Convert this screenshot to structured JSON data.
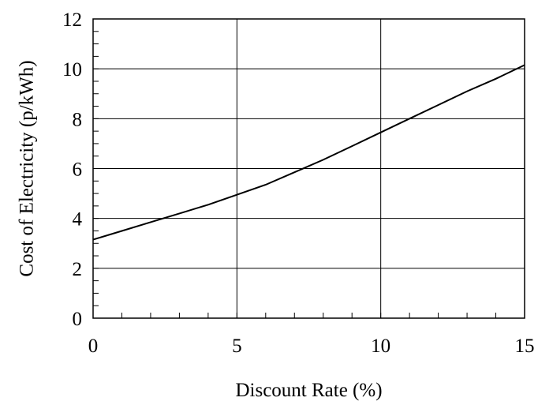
{
  "chart_data": {
    "type": "line",
    "title": "",
    "xlabel": "Discount Rate (%)",
    "ylabel": "Cost of Electricity (p/kWh)",
    "xlim": [
      0,
      15
    ],
    "ylim": [
      0,
      12
    ],
    "xticks": [
      0,
      5,
      10,
      15
    ],
    "yticks": [
      0,
      2,
      4,
      6,
      8,
      10,
      12
    ],
    "x_minor_step": 1,
    "y_minor_step": 0.5,
    "grid": true,
    "legend": "none",
    "series": [
      {
        "x": [
          0,
          1,
          2,
          3,
          4,
          5,
          6,
          7,
          8,
          9,
          10,
          11,
          12,
          13,
          14,
          15
        ],
        "y": [
          3.15,
          3.5,
          3.85,
          4.2,
          4.55,
          4.95,
          5.35,
          5.85,
          6.35,
          6.9,
          7.45,
          8.0,
          8.55,
          9.1,
          9.6,
          10.15
        ]
      }
    ]
  }
}
